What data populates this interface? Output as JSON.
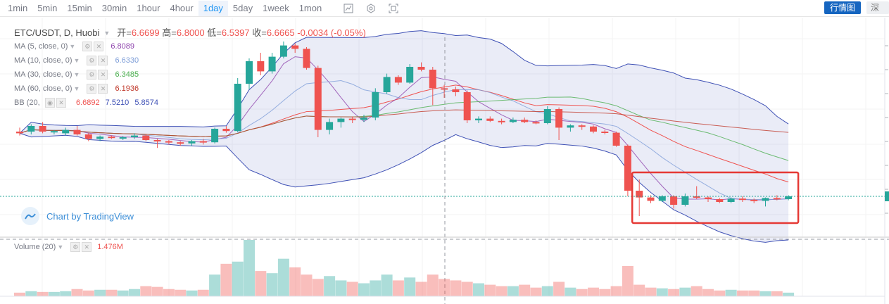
{
  "toolbar": {
    "intervals": [
      "1min",
      "5min",
      "15min",
      "30min",
      "1hour",
      "4hour",
      "1day",
      "5day",
      "1week",
      "1mon"
    ],
    "active_interval": "1day",
    "icons": [
      "indicators-icon",
      "settings-icon",
      "fullscreen-icon"
    ],
    "quote_button": "行情图",
    "depth_button": "深度图"
  },
  "legend": {
    "symbol": "ETC/USDT, D, Huobi",
    "open_label": "开=",
    "open": "6.6699",
    "high_label": "高=",
    "high": "6.8000",
    "low_label": "低=",
    "low": "6.5397",
    "close_label": "收=",
    "close": "6.6665",
    "change": "-0.0034 (-0.05%)",
    "indicators": [
      {
        "name": "MA (5, close, 0)",
        "value": "6.8089",
        "color": "#8e44ad"
      },
      {
        "name": "MA (10, close, 0)",
        "value": "6.6330",
        "color": "#7e9ed8"
      },
      {
        "name": "MA (30, close, 0)",
        "value": "6.3485",
        "color": "#4caf50"
      },
      {
        "name": "MA (60, close, 0)",
        "value": "6.1936",
        "color": "#c0392b"
      }
    ],
    "bb": {
      "name": "BB (20, 2)",
      "value1": "6.6892",
      "value2": "7.5210",
      "value3": "5.8574"
    }
  },
  "watermark": "Chart by TradingView",
  "volume": {
    "name": "Volume (20)",
    "value": "1.476M"
  },
  "colors": {
    "up": "#26a69a",
    "down": "#ef5350",
    "band": "#3f51b5",
    "highlight": "#e53935"
  },
  "chart_data": {
    "type": "candlestick",
    "candles": [
      [
        6.55,
        6.62,
        6.48,
        6.52
      ],
      [
        6.55,
        6.68,
        6.5,
        6.65
      ],
      [
        6.65,
        6.72,
        6.52,
        6.55
      ],
      [
        6.55,
        6.58,
        6.5,
        6.56
      ],
      [
        6.52,
        6.62,
        6.48,
        6.58
      ],
      [
        6.58,
        6.65,
        6.48,
        6.5
      ],
      [
        6.5,
        6.52,
        6.38,
        6.42
      ],
      [
        6.42,
        6.48,
        6.38,
        6.46
      ],
      [
        6.46,
        6.48,
        6.42,
        6.44
      ],
      [
        6.44,
        6.47,
        6.4,
        6.45
      ],
      [
        6.45,
        6.52,
        6.42,
        6.48
      ],
      [
        6.48,
        6.5,
        6.38,
        6.4
      ],
      [
        6.4,
        6.42,
        6.26,
        6.38
      ],
      [
        6.38,
        6.4,
        6.32,
        6.36
      ],
      [
        6.36,
        6.38,
        6.3,
        6.34
      ],
      [
        6.34,
        6.4,
        6.3,
        6.38
      ],
      [
        6.38,
        6.42,
        6.32,
        6.36
      ],
      [
        6.36,
        6.62,
        6.34,
        6.6
      ],
      [
        6.6,
        6.65,
        6.53,
        6.56
      ],
      [
        6.56,
        7.5,
        6.54,
        7.4
      ],
      [
        7.4,
        7.85,
        7.3,
        7.8
      ],
      [
        7.8,
        7.95,
        7.55,
        7.62
      ],
      [
        7.62,
        7.95,
        7.58,
        7.88
      ],
      [
        7.88,
        8.15,
        7.85,
        8.08
      ],
      [
        8.08,
        8.12,
        7.95,
        8.02
      ],
      [
        8.02,
        8.05,
        7.65,
        7.68
      ],
      [
        7.68,
        7.72,
        6.45,
        6.58
      ],
      [
        6.58,
        6.78,
        6.5,
        6.72
      ],
      [
        6.72,
        6.8,
        6.62,
        6.78
      ],
      [
        6.78,
        6.82,
        6.7,
        6.76
      ],
      [
        6.76,
        6.85,
        6.72,
        6.8
      ],
      [
        6.8,
        7.32,
        6.75,
        7.25
      ],
      [
        7.25,
        7.58,
        7.22,
        7.52
      ],
      [
        7.52,
        7.55,
        7.38,
        7.42
      ],
      [
        7.42,
        7.75,
        7.4,
        7.7
      ],
      [
        7.7,
        7.78,
        7.62,
        7.65
      ],
      [
        7.65,
        7.7,
        7.02,
        7.32
      ],
      [
        7.32,
        7.38,
        7.15,
        7.3
      ],
      [
        7.3,
        7.35,
        7.18,
        7.25
      ],
      [
        7.25,
        7.28,
        6.7,
        6.75
      ],
      [
        6.75,
        6.82,
        6.7,
        6.78
      ],
      [
        6.78,
        6.82,
        6.72,
        6.74
      ],
      [
        6.74,
        6.78,
        6.68,
        6.72
      ],
      [
        6.72,
        6.8,
        6.7,
        6.76
      ],
      [
        6.76,
        6.8,
        6.7,
        6.72
      ],
      [
        6.72,
        6.75,
        6.68,
        6.7
      ],
      [
        6.7,
        7.0,
        6.68,
        6.95
      ],
      [
        6.95,
        6.98,
        6.4,
        6.62
      ],
      [
        6.62,
        6.68,
        6.55,
        6.66
      ],
      [
        6.66,
        6.68,
        6.58,
        6.64
      ],
      [
        6.64,
        6.66,
        6.52,
        6.55
      ],
      [
        6.55,
        6.58,
        6.5,
        6.53
      ],
      [
        6.53,
        6.55,
        6.28,
        6.3
      ],
      [
        6.3,
        6.32,
        5.4,
        5.5
      ],
      [
        5.5,
        5.7,
        5.05,
        5.38
      ],
      [
        5.38,
        5.42,
        5.28,
        5.32
      ],
      [
        5.32,
        5.42,
        5.3,
        5.4
      ],
      [
        5.4,
        5.42,
        5.18,
        5.25
      ],
      [
        5.25,
        5.45,
        5.22,
        5.4
      ],
      [
        5.4,
        5.58,
        5.35,
        5.38
      ],
      [
        5.38,
        5.4,
        5.3,
        5.35
      ],
      [
        5.35,
        5.37,
        5.28,
        5.3
      ],
      [
        5.3,
        5.38,
        5.28,
        5.36
      ],
      [
        5.36,
        5.4,
        5.3,
        5.34
      ],
      [
        5.34,
        5.36,
        5.28,
        5.32
      ],
      [
        5.32,
        5.38,
        5.22,
        5.37
      ],
      [
        5.37,
        5.42,
        5.33,
        5.35
      ],
      [
        5.35,
        5.42,
        5.33,
        5.4
      ]
    ],
    "volume": [
      5,
      7,
      6,
      6,
      7,
      10,
      8,
      9,
      9,
      8,
      10,
      14,
      13,
      10,
      9,
      8,
      9,
      30,
      45,
      48,
      78,
      35,
      32,
      52,
      40,
      30,
      24,
      28,
      22,
      20,
      18,
      22,
      30,
      22,
      26,
      20,
      30,
      24,
      22,
      20,
      18,
      16,
      14,
      14,
      16,
      12,
      14,
      20,
      12,
      10,
      12,
      10,
      14,
      42,
      16,
      12,
      11,
      10,
      12,
      14,
      10,
      8,
      9,
      8,
      8,
      7,
      7,
      5
    ],
    "ma_periods": [
      5,
      10,
      30,
      60
    ],
    "bb_period": 20,
    "bb_mult": 2
  }
}
